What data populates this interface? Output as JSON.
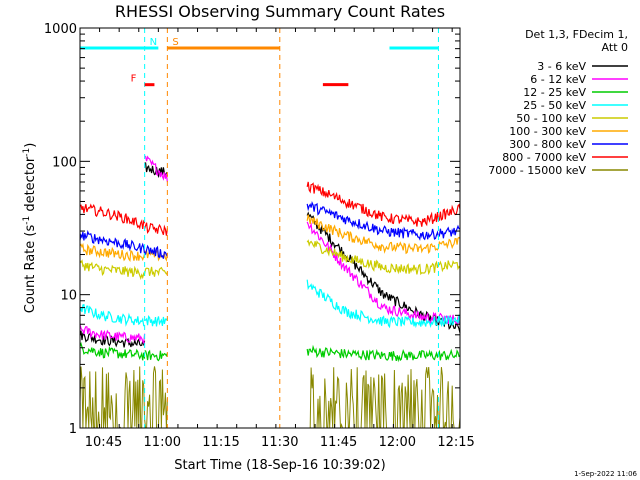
{
  "chart_data": {
    "type": "line",
    "title": "RHESSI Observing Summary Count Rates",
    "xlabel": "Start Time (18-Sep-16 10:39:02)",
    "ylabel_main": "Count Rate (s",
    "ylabel_sup1": "-1",
    "ylabel_mid": " detector",
    "ylabel_sup2": "-1",
    "ylabel_end": ")",
    "yscale": "log",
    "ylim": [
      1,
      1000
    ],
    "xlim_minutes": [
      0,
      97
    ],
    "x_ticks": [
      {
        "label": "10:45",
        "min": 6
      },
      {
        "label": "11:00",
        "min": 21
      },
      {
        "label": "11:15",
        "min": 36
      },
      {
        "label": "11:30",
        "min": 51
      },
      {
        "label": "11:45",
        "min": 66
      },
      {
        "label": "12:00",
        "min": 81
      },
      {
        "label": "12:15",
        "min": 96
      }
    ],
    "y_ticks": [
      {
        "label": "1",
        "value": 1
      },
      {
        "label": "10",
        "value": 10
      },
      {
        "label": "100",
        "value": 100
      },
      {
        "label": "1000",
        "value": 1000
      }
    ],
    "legend_header": [
      "Det 1,3, FDecim 1,",
      "Att 0"
    ],
    "legend_position": "right",
    "gaps_minutes": [
      [
        22.3,
        58
      ]
    ],
    "series": [
      {
        "name": "3 - 6 keV",
        "color": "#000000",
        "pre": [
          5,
          4.6,
          4.4,
          4.2
        ],
        "flare": [
          90,
          82
        ],
        "post": [
          40,
          20,
          10,
          7,
          5.5
        ]
      },
      {
        "name": "6 - 12 keV",
        "color": "#ff00ff",
        "pre": [
          5.5,
          5,
          4.8,
          4.7
        ],
        "flare": [
          105,
          75
        ],
        "post": [
          35,
          16,
          8,
          6.8,
          6.5
        ]
      },
      {
        "name": "12 - 25 keV",
        "color": "#00cc00",
        "pre": [
          4,
          3.7,
          3.6,
          3.5
        ],
        "flare": [
          3.5,
          3.5
        ],
        "post": [
          3.8,
          3.6,
          3.5,
          3.5,
          3.5
        ]
      },
      {
        "name": "25 - 50 keV",
        "color": "#00ffff",
        "pre": [
          8,
          7,
          6.6,
          6.3
        ],
        "flare": [
          6.4,
          6.3
        ],
        "post": [
          12,
          7.5,
          6.3,
          6.2,
          6.5
        ]
      },
      {
        "name": "50 - 100 keV",
        "color": "#cccc00",
        "pre": [
          17,
          15.5,
          15,
          14.5
        ],
        "flare": [
          15,
          14.5
        ],
        "post": [
          25,
          19,
          16,
          15.5,
          17
        ]
      },
      {
        "name": "100 - 300 keV",
        "color": "#ffaa00",
        "pre": [
          22,
          21,
          20,
          19.5
        ],
        "flare": [
          20,
          19.5
        ],
        "post": [
          37,
          28,
          23,
          22,
          25
        ]
      },
      {
        "name": "300 - 800 keV",
        "color": "#0000ff",
        "pre": [
          28,
          26,
          24,
          22
        ],
        "flare": [
          22,
          20
        ],
        "post": [
          47,
          37,
          30,
          28,
          30
        ]
      },
      {
        "name": "800 - 7000 keV",
        "color": "#ff0000",
        "pre": [
          45,
          42,
          38,
          33
        ],
        "flare": [
          32,
          30
        ],
        "post": [
          66,
          50,
          38,
          35,
          44
        ]
      },
      {
        "name": "7000 - 15000 keV",
        "color": "#888800",
        "pre": [
          1.6,
          1.6,
          1.6,
          1.6
        ],
        "flare": [
          1.6,
          1.6
        ],
        "post": [
          1.7,
          1.6,
          1.6,
          1.6,
          1.6
        ]
      }
    ],
    "flag_bars": [
      {
        "label": "",
        "color": "#00ffff",
        "y": 1000,
        "start": 0,
        "end": 16.5
      },
      {
        "label": "N",
        "color": "#00ffff",
        "y": 1000,
        "start": 16.5,
        "end": 20
      },
      {
        "label": "F",
        "color": "#ff0000",
        "y": 620,
        "start": 16.5,
        "end": 19
      },
      {
        "label": "S",
        "color": "#ff8800",
        "y": 1000,
        "start": 22.3,
        "end": 51
      },
      {
        "label": "",
        "color": "#ff0000",
        "y": 620,
        "start": 62,
        "end": 68.5
      },
      {
        "label": "",
        "color": "#00ffff",
        "y": 1000,
        "start": 79,
        "end": 91.5
      }
    ],
    "boundaries": [
      {
        "min": 16.5,
        "color": "#00ffff"
      },
      {
        "min": 22.3,
        "color": "#ff8800"
      },
      {
        "min": 51,
        "color": "#ff8800"
      },
      {
        "min": 91.5,
        "color": "#00ffff"
      }
    ],
    "footer": "1-Sep-2022 11:06"
  }
}
